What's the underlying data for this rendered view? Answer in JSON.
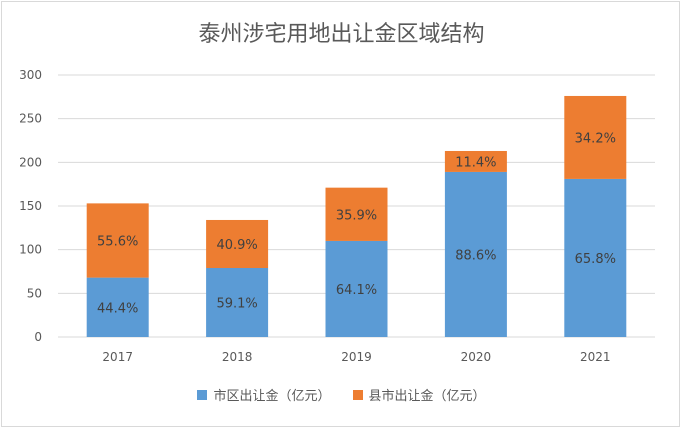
{
  "chart_data": {
    "type": "bar",
    "stacked": true,
    "title": "泰州涉宅用地出让金区域结构",
    "categories": [
      "2017",
      "2018",
      "2019",
      "2020",
      "2021"
    ],
    "series": [
      {
        "name": "市区出让金（亿元）",
        "color": "#5b9bd5",
        "values": [
          68,
          79,
          110,
          189,
          181
        ],
        "labels": [
          "44.4%",
          "59.1%",
          "64.1%",
          "88.6%",
          "65.8%"
        ]
      },
      {
        "name": "县市出让金（亿元）",
        "color": "#ed7d31",
        "values": [
          85,
          55,
          61,
          24,
          95
        ],
        "labels": [
          "55.6%",
          "40.9%",
          "35.9%",
          "11.4%",
          "34.2%"
        ]
      }
    ],
    "y_ticks": [
      "0",
      "50",
      "100",
      "150",
      "200",
      "250",
      "300"
    ],
    "ylim": [
      0,
      300
    ],
    "grid": true,
    "legend_position": "bottom"
  }
}
